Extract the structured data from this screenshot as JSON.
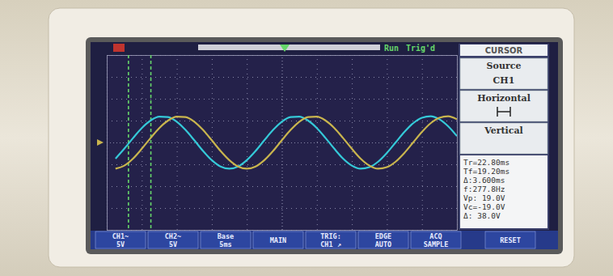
{
  "chart_data": {
    "type": "line",
    "xlim": [
      0,
      10
    ],
    "ylim": [
      -4,
      4
    ],
    "xticks": [
      0,
      1,
      2,
      3,
      4,
      5,
      6,
      7,
      8,
      9,
      10
    ],
    "yticks": [
      -4,
      -3,
      -2,
      -1,
      0,
      1,
      2,
      3,
      4
    ],
    "grid": true,
    "tick_labels": false,
    "x": [
      0.25,
      0.5,
      0.75,
      1.0,
      1.25,
      1.5,
      1.75,
      2.0,
      2.25,
      2.5,
      2.75,
      3.0,
      3.25,
      3.5,
      3.75,
      4.0,
      4.25,
      4.5,
      4.75,
      5.0,
      5.25,
      5.5,
      5.75,
      6.0,
      6.25,
      6.5,
      6.75,
      7.0,
      7.25,
      7.5,
      7.75,
      8.0,
      8.25,
      8.5,
      8.75,
      9.0,
      9.25,
      9.5,
      9.75,
      10.0
    ],
    "series": [
      {
        "color": "#35c9d8",
        "values": [
          -0.74,
          -0.29,
          0.2,
          0.66,
          1.0,
          1.18,
          1.16,
          0.95,
          0.57,
          0.1,
          -0.39,
          -0.81,
          -1.1,
          -1.2,
          -1.1,
          -0.81,
          -0.39,
          0.1,
          0.57,
          0.95,
          1.16,
          1.18,
          1.0,
          0.66,
          0.2,
          -0.29,
          -0.74,
          -1.06,
          -1.2,
          -1.13,
          -0.88,
          -0.48,
          0.0,
          0.48,
          0.88,
          1.13,
          1.2,
          1.06,
          0.74,
          0.29
        ]
      },
      {
        "color": "#c9b54e",
        "values": [
          -1.2,
          -1.06,
          -0.74,
          -0.29,
          0.2,
          0.66,
          1.0,
          1.18,
          1.16,
          0.95,
          0.57,
          0.1,
          -0.39,
          -0.81,
          -1.1,
          -1.2,
          -1.1,
          -0.81,
          -0.39,
          0.1,
          0.57,
          0.95,
          1.16,
          1.18,
          1.0,
          0.66,
          0.2,
          -0.29,
          -0.74,
          -1.06,
          -1.2,
          -1.13,
          -0.88,
          -0.48,
          0.0,
          0.48,
          0.88,
          1.13,
          1.2,
          1.06
        ]
      }
    ],
    "cursors": [
      0.62,
      1.26
    ]
  },
  "status": {
    "run": "Run",
    "trigger": "Trig'd"
  },
  "menu": {
    "title": "CURSOR",
    "items": [
      {
        "label": "Source",
        "value": "CH1"
      },
      {
        "label": "Horizontal"
      },
      {
        "label": "Vertical"
      }
    ]
  },
  "readouts": [
    "Tr=22.80ms",
    "Tf=19.20ms",
    "Δ:3.600ms",
    "f:277.8Hz",
    "Vp: 19.0V",
    "Vc=-19.0V",
    "Δ: 38.0V"
  ],
  "softkeys": [
    [
      "CH1~",
      "5V"
    ],
    [
      "CH2~",
      "5V"
    ],
    [
      "Base",
      "5ms"
    ],
    [
      "MAIN"
    ],
    [
      "TRIG:",
      "CH1 ↗"
    ],
    [
      "EDGE",
      "AUTO"
    ],
    [
      "ACQ",
      "SAMPLE"
    ],
    [
      "RESET"
    ]
  ]
}
